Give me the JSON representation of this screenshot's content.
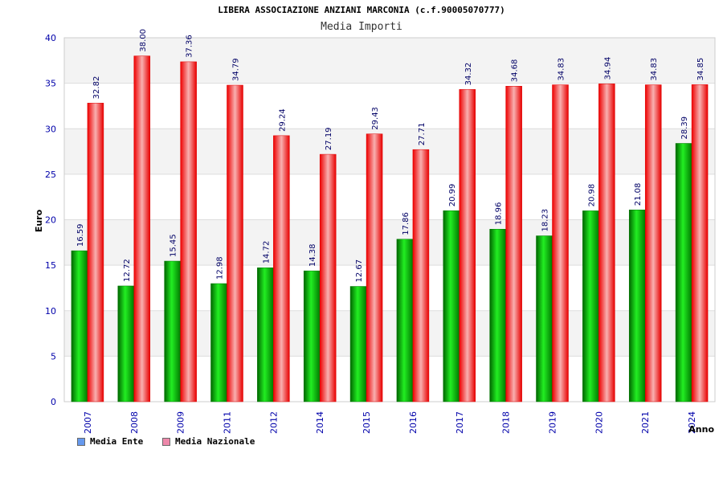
{
  "chart_data": {
    "type": "bar",
    "title": "LIBERA ASSOCIAZIONE ANZIANI MARCONIA (c.f.90005070777)",
    "subtitle": "Media Importi",
    "ylabel": "Euro",
    "xlabel": "Anno",
    "ylim": [
      0,
      40
    ],
    "yticks": [
      0,
      5,
      10,
      15,
      20,
      25,
      30,
      35,
      40
    ],
    "categories": [
      "2007",
      "2008",
      "2009",
      "2011",
      "2012",
      "2014",
      "2015",
      "2016",
      "2017",
      "2018",
      "2019",
      "2020",
      "2021",
      "2024"
    ],
    "series": [
      {
        "name": "Media Ente",
        "color": "#00b000",
        "values": [
          16.59,
          12.72,
          15.45,
          12.98,
          14.72,
          14.38,
          12.67,
          17.86,
          20.99,
          18.96,
          18.23,
          20.98,
          21.08,
          28.39
        ]
      },
      {
        "name": "Media Nazionale",
        "color": "#ee1111",
        "values": [
          32.82,
          38.0,
          37.36,
          34.79,
          29.24,
          27.19,
          29.43,
          27.71,
          34.32,
          34.68,
          34.83,
          34.94,
          34.83,
          34.85
        ]
      }
    ],
    "legend": [
      {
        "label": "Media Ente",
        "color": "#6699ee"
      },
      {
        "label": "Media Nazionale",
        "color": "#ee88aa"
      }
    ],
    "data_labels": [
      [
        "16.59",
        "12.72",
        "15.45",
        "12.98",
        "14.72",
        "14.38",
        "12.67",
        "17.86",
        "20.99",
        "18.96",
        "18.23",
        "20.98",
        "21.08",
        "28.39"
      ],
      [
        "32.82",
        "38.00",
        "37.36",
        "34.79",
        "29.24",
        "27.19",
        "29.43",
        "27.71",
        "34.32",
        "34.68",
        "34.83",
        "34.94",
        "34.83",
        "34.85"
      ]
    ],
    "grid": true,
    "legend_position": "bottom-left"
  }
}
